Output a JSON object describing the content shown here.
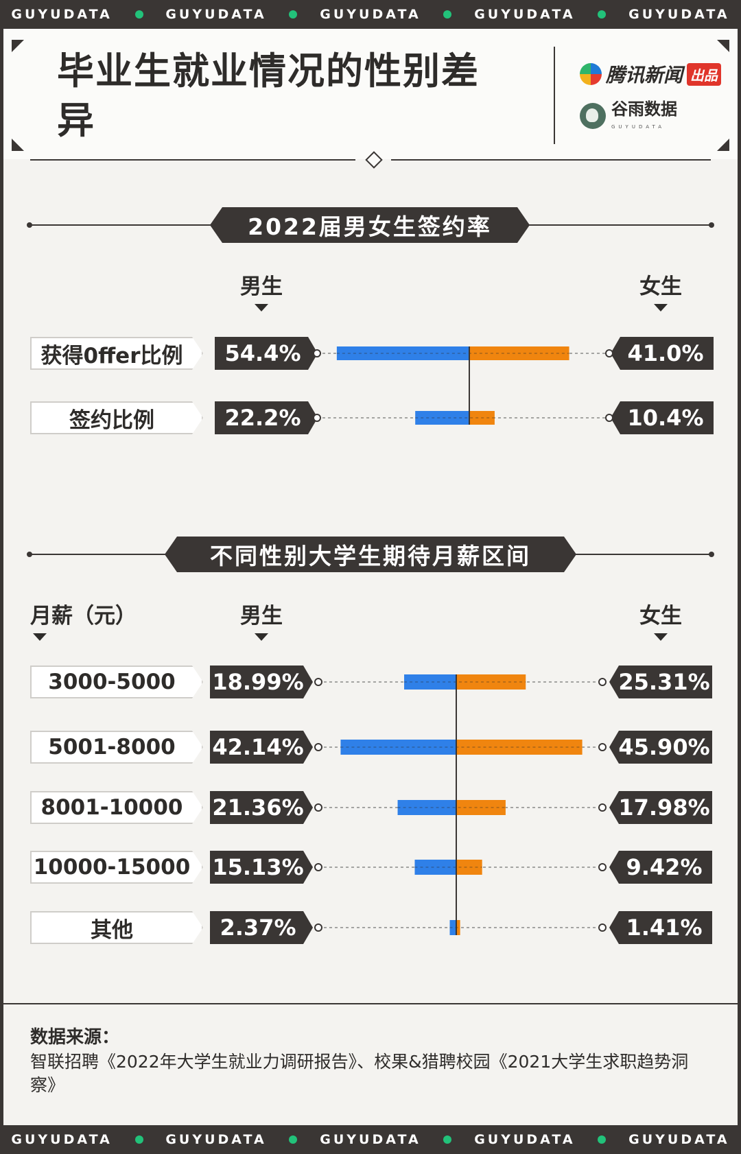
{
  "ticker": {
    "items": [
      "GUYUDATA",
      "GUYUDATA",
      "GUYUDATA",
      "GUYUDATA",
      "GUYUDATA"
    ]
  },
  "header": {
    "title": "毕业生就业情况的性别差异",
    "brand1": {
      "name": "腾讯新闻",
      "badge": "出品"
    },
    "brand2": {
      "name": "谷雨数据",
      "sub": "GUYUDATA"
    }
  },
  "colors": {
    "male": "#2f80e8",
    "female": "#f0850f",
    "dark": "#3a3634"
  },
  "chart_data": [
    {
      "type": "bar",
      "title": "2022届男女生签约率",
      "header_left": "",
      "categories": [
        "获得0ffer比例",
        "签约比例"
      ],
      "series": [
        {
          "name": "男生",
          "values": [
            54.4,
            22.2
          ],
          "labels": [
            "54.4%",
            "22.2%"
          ]
        },
        {
          "name": "女生",
          "values": [
            41.0,
            10.4
          ],
          "labels": [
            "41.0%",
            "10.4%"
          ]
        }
      ],
      "unit": "%"
    },
    {
      "type": "bar",
      "title": "不同性别大学生期待月薪区间",
      "header_left": "月薪（元）",
      "categories": [
        "3000-5000",
        "5001-8000",
        "8001-10000",
        "10000-15000",
        "其他"
      ],
      "series": [
        {
          "name": "男生",
          "values": [
            18.99,
            42.14,
            21.36,
            15.13,
            2.37
          ],
          "labels": [
            "18.99%",
            "42.14%",
            "21.36%",
            "15.13%",
            "2.37%"
          ]
        },
        {
          "name": "女生",
          "values": [
            25.31,
            45.9,
            17.98,
            9.42,
            1.41
          ],
          "labels": [
            "25.31%",
            "45.90%",
            "17.98%",
            "9.42%",
            "1.41%"
          ]
        }
      ],
      "unit": "%"
    }
  ],
  "source": {
    "label": "数据来源：",
    "text": "智联招聘《2022年大学生就业力调研报告》、校果&猎聘校园《2021大学生求职趋势洞察》"
  }
}
